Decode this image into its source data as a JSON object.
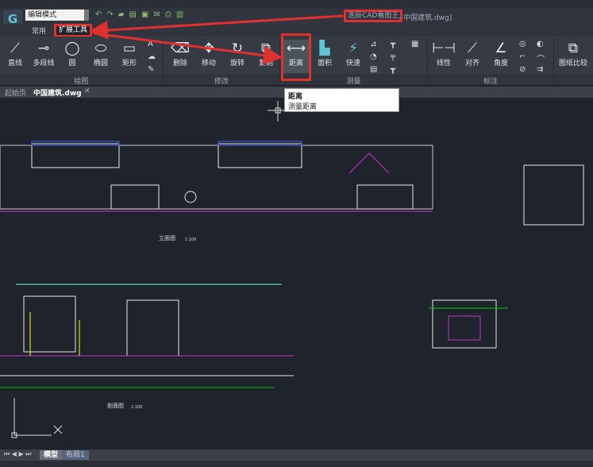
{
  "app": {
    "title": "浩辰CAD看图王",
    "title_suffix": " - 中国建筑.dwg]",
    "mode": "编辑模式"
  },
  "tabs": [
    {
      "label": "常用"
    },
    {
      "label": "扩展工具",
      "active": true
    }
  ],
  "ribbon": {
    "draw": {
      "label": "绘图",
      "items": [
        "直线",
        "多段线",
        "圆",
        "椭圆",
        "矩形"
      ]
    },
    "modify": {
      "label": "修改",
      "items": [
        "删除",
        "移动",
        "旋转",
        "复制"
      ]
    },
    "measure": {
      "label": "测量",
      "items": [
        "距离",
        "面积",
        "快速"
      ]
    },
    "annotate": {
      "label": "标注",
      "items": [
        "线性",
        "对齐",
        "角度"
      ]
    },
    "compare": {
      "label": "图纸比较"
    }
  },
  "doc_tabs": [
    {
      "label": "起始页"
    },
    {
      "label": "中国建筑.dwg",
      "active": true
    }
  ],
  "tooltip": {
    "title": "距离",
    "desc": "测量距离"
  },
  "drawing": {
    "elevation_label": "立面图",
    "elevation_scale": "1:100",
    "section_label": "剖面图",
    "section_scale": "1:100"
  },
  "layout_tabs": [
    {
      "label": "模型",
      "active": true
    },
    {
      "label": "布局1"
    }
  ],
  "colors": {
    "highlight": "#e03030",
    "canvas": "#1f232b",
    "ribbon": "#353a43"
  }
}
